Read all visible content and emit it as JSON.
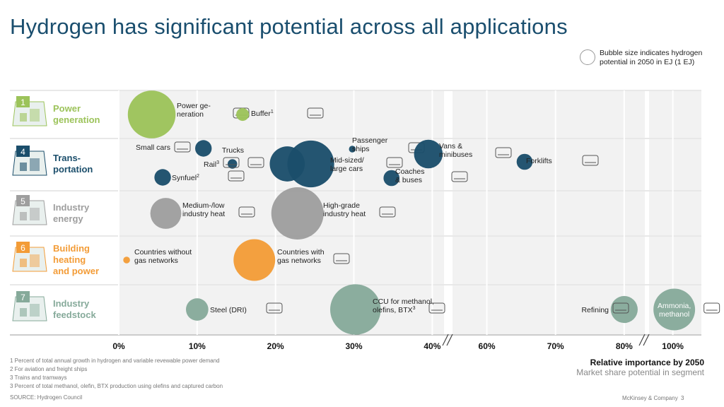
{
  "title": "Hydrogen has significant potential across all applications",
  "legend": {
    "text": "Bubble size indicates hydrogen potential in 2050 in EJ (1 EJ)"
  },
  "chart_data": {
    "type": "scatter",
    "subtype": "bubble",
    "x_axis": {
      "title": "Relative importance by 2050",
      "subtitle": "Market share potential in segment",
      "ticks": [
        "0%",
        "10%",
        "20%",
        "30%",
        "40%",
        "60%",
        "70%",
        "80%",
        "100%"
      ],
      "tick_values": [
        0,
        10,
        20,
        30,
        40,
        60,
        70,
        80,
        100
      ],
      "segments": [
        {
          "range": [
            0,
            41.5
          ]
        },
        {
          "range": [
            55,
            83
          ]
        },
        {
          "range": [
            95,
            106
          ]
        }
      ]
    },
    "rows": [
      {
        "number": "1",
        "label": "Power generation",
        "label_lines": [
          "Power",
          "generation"
        ],
        "color": "#9cc35a"
      },
      {
        "number": "4",
        "label": "Trans-portation",
        "label_lines": [
          "Trans-",
          "portation"
        ],
        "color": "#1b4e6b"
      },
      {
        "number": "5",
        "label": "Industry energy",
        "label_lines": [
          "Industry",
          "energy"
        ],
        "color": "#9e9e9e"
      },
      {
        "number": "6",
        "label": "Building heating and power",
        "label_lines": [
          "Building",
          "heating",
          "and power"
        ],
        "color": "#f39c37"
      },
      {
        "number": "7",
        "label": "Industry feedstock",
        "label_lines": [
          "Industry",
          "feedstock"
        ],
        "color": "#86aa9a"
      }
    ],
    "bubbles": [
      {
        "row": 0,
        "x": 4.2,
        "size": 2.5,
        "label": [
          "Power ge-",
          "neration"
        ],
        "sup": "",
        "icon": "power-plant-icon"
      },
      {
        "row": 0,
        "x": 15.8,
        "size": 0.18,
        "label": [
          "Buffer"
        ],
        "sup": "1",
        "icon": "storage-icon"
      },
      {
        "row": 1,
        "x": 10.8,
        "size": 0.3,
        "label": [
          "Small cars"
        ],
        "sup": "",
        "icon": "small-car-icon"
      },
      {
        "row": 1,
        "x": 14.5,
        "size": 0.1,
        "label": [
          "Rail"
        ],
        "sup": "3",
        "icon": "train-icon"
      },
      {
        "row": 1,
        "x": 5.6,
        "size": 0.3,
        "label": [
          "Synfuel"
        ],
        "sup": "2",
        "icon": "plane-icon"
      },
      {
        "row": 1,
        "x": 21.5,
        "size": 1.35,
        "label": [
          "Trucks"
        ],
        "sup": "",
        "icon": "truck-icon"
      },
      {
        "row": 1,
        "x": 24.5,
        "size": 2.4,
        "label": [
          "Mid-sized/",
          "large cars"
        ],
        "sup": "",
        "icon": "large-car-icon"
      },
      {
        "row": 1,
        "x": 29.8,
        "size": 0.05,
        "label": [
          "Passenger",
          "ships"
        ],
        "sup": "",
        "icon": "ship-icon"
      },
      {
        "row": 1,
        "x": 34.8,
        "size": 0.28,
        "label": [
          "Coaches",
          "& buses"
        ],
        "sup": "",
        "icon": "bus-icon"
      },
      {
        "row": 1,
        "x": 39.5,
        "size": 0.9,
        "label": [
          "Vans &",
          "minibuses"
        ],
        "sup": "",
        "icon": "van-icon"
      },
      {
        "row": 1,
        "x": 65.5,
        "size": 0.28,
        "label": [
          "Forklifts"
        ],
        "sup": "",
        "icon": "forklift-icon"
      },
      {
        "row": 2,
        "x": 6.0,
        "size": 1.05,
        "label": [
          "Medium-/low",
          "industry heat"
        ],
        "sup": "",
        "icon": "factory-icon"
      },
      {
        "row": 2,
        "x": 22.8,
        "size": 3.0,
        "label": [
          "High-grade",
          "industry heat"
        ],
        "sup": "",
        "icon": "factory-icon"
      },
      {
        "row": 3,
        "x": 1.0,
        "size": 0.05,
        "label": [
          "Countries without",
          "gas networks"
        ],
        "sup": "",
        "icon": ""
      },
      {
        "row": 3,
        "x": 17.3,
        "size": 1.9,
        "label": [
          "Countries with",
          "gas networks"
        ],
        "sup": "",
        "icon": "pipeline-icon"
      },
      {
        "row": 4,
        "x": 10.0,
        "size": 0.55,
        "label": [
          "Steel (DRI)"
        ],
        "sup": "",
        "icon": "steel-icon"
      },
      {
        "row": 4,
        "x": 30.2,
        "size": 2.8,
        "label": [
          "CCU for methanol,",
          "olefins, BTX"
        ],
        "sup": "3",
        "icon": "molecule-icon"
      },
      {
        "row": 4,
        "x": 80.0,
        "size": 0.8,
        "label": [
          "Refining"
        ],
        "sup": "",
        "icon": "refinery-icon"
      },
      {
        "row": 4,
        "x": 100.3,
        "size": 1.9,
        "label": [
          "Ammonia,",
          "methanol"
        ],
        "sup": "",
        "icon": "flask-icon"
      }
    ]
  },
  "footnotes": [
    "1 Percent of total annual growth in hydrogen and variable revewable power demand",
    "2 For aviation and freight ships",
    "3 Trains and tramways",
    "3 Percent of total methanol, olefin, BTX production using olefins and captured carbon"
  ],
  "source": "SOURCE:  Hydrogen Council",
  "company": "McKinsey & Company",
  "page_number": "3",
  "colors": {
    "title": "#1a4e6e",
    "band": "#f2f2f2",
    "grid": "#ffffff"
  }
}
